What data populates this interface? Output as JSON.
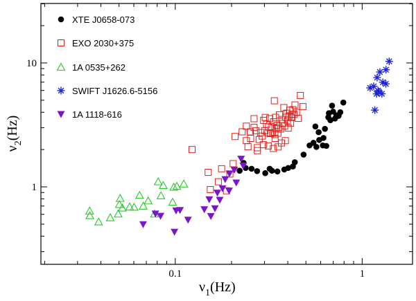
{
  "chart_data": {
    "type": "scatter",
    "title": "",
    "xlabel": "ν1(Hz)",
    "xlabel_main": "ν",
    "xlabel_sub": "1",
    "xlabel_unit": "(Hz)",
    "ylabel": "ν2(Hz)",
    "ylabel_main": "ν",
    "ylabel_sub": "2",
    "ylabel_unit": "(Hz)",
    "xscale": "log",
    "yscale": "log",
    "xlim": [
      0.0191,
      1.86
    ],
    "ylim": [
      0.237,
      30.2
    ],
    "xticks": [
      {
        "value": 0.1,
        "label": "0.1"
      },
      {
        "value": 1,
        "label": "1"
      }
    ],
    "yticks": [
      {
        "value": 1,
        "label": "1"
      },
      {
        "value": 10,
        "label": "10"
      }
    ],
    "legend_position": "top-left",
    "series": [
      {
        "name": "XTE J0658-073",
        "marker": "filled-circle",
        "color": "#000000",
        "points": [
          [
            0.221,
            1.35
          ],
          [
            0.232,
            1.56
          ],
          [
            0.238,
            1.42
          ],
          [
            0.256,
            1.4
          ],
          [
            0.274,
            1.34
          ],
          [
            0.303,
            1.29
          ],
          [
            0.32,
            1.4
          ],
          [
            0.329,
            1.35
          ],
          [
            0.352,
            1.33
          ],
          [
            0.383,
            1.38
          ],
          [
            0.402,
            1.42
          ],
          [
            0.426,
            1.46
          ],
          [
            0.436,
            1.58
          ],
          [
            0.486,
            1.82
          ],
          [
            0.523,
            2.16
          ],
          [
            0.549,
            2.27
          ],
          [
            0.562,
            3.07
          ],
          [
            0.569,
            2.1
          ],
          [
            0.585,
            2.76
          ],
          [
            0.589,
            2.39
          ],
          [
            0.616,
            2.16
          ],
          [
            0.632,
            2.94
          ],
          [
            0.643,
            2.14
          ],
          [
            0.659,
            3.64
          ],
          [
            0.664,
            3.93
          ],
          [
            0.676,
            3.45
          ],
          [
            0.69,
            4.52
          ],
          [
            0.699,
            4.05
          ],
          [
            0.716,
            3.56
          ],
          [
            0.728,
            3.78
          ],
          [
            0.748,
            3.74
          ],
          [
            0.764,
            4.0
          ],
          [
            0.793,
            4.79
          ],
          [
            0.621,
            2.48
          ]
        ]
      },
      {
        "name": "EXO 2030+375",
        "marker": "open-square",
        "color": "#e0201c",
        "points": [
          [
            0.123,
            2.0
          ],
          [
            0.15,
            1.31
          ],
          [
            0.154,
            0.95
          ],
          [
            0.17,
            1.1
          ],
          [
            0.177,
            1.4
          ],
          [
            0.188,
            0.93
          ],
          [
            0.196,
            1.27
          ],
          [
            0.204,
            1.54
          ],
          [
            0.209,
            2.55
          ],
          [
            0.228,
            2.78
          ],
          [
            0.24,
            3.09
          ],
          [
            0.24,
            2.36
          ],
          [
            0.245,
            2.11
          ],
          [
            0.253,
            2.46
          ],
          [
            0.264,
            3.02
          ],
          [
            0.27,
            2.84
          ],
          [
            0.275,
            2.07
          ],
          [
            0.281,
            2.41
          ],
          [
            0.286,
            2.74
          ],
          [
            0.292,
            2.57
          ],
          [
            0.297,
            3.44
          ],
          [
            0.301,
            2.84
          ],
          [
            0.308,
            3.2
          ],
          [
            0.313,
            2.73
          ],
          [
            0.316,
            3.04
          ],
          [
            0.32,
            3.55
          ],
          [
            0.323,
            2.69
          ],
          [
            0.327,
            3.06
          ],
          [
            0.332,
            2.73
          ],
          [
            0.336,
            3.35
          ],
          [
            0.339,
            4.95
          ],
          [
            0.341,
            2.64
          ],
          [
            0.344,
            3.64
          ],
          [
            0.347,
            2.95
          ],
          [
            0.35,
            3.14
          ],
          [
            0.354,
            2.71
          ],
          [
            0.358,
            3.03
          ],
          [
            0.361,
            3.81
          ],
          [
            0.366,
            2.93
          ],
          [
            0.37,
            2.26
          ],
          [
            0.372,
            3.5
          ],
          [
            0.376,
            3.25
          ],
          [
            0.381,
            4.36
          ],
          [
            0.385,
            3.11
          ],
          [
            0.39,
            3.64
          ],
          [
            0.395,
            3.93
          ],
          [
            0.398,
            3.42
          ],
          [
            0.402,
            2.98
          ],
          [
            0.406,
            3.74
          ],
          [
            0.41,
            4.15
          ],
          [
            0.414,
            3.27
          ],
          [
            0.418,
            3.63
          ],
          [
            0.422,
            3.86
          ],
          [
            0.426,
            4.2
          ],
          [
            0.432,
            3.84
          ],
          [
            0.437,
            4.58
          ],
          [
            0.445,
            3.98
          ],
          [
            0.455,
            3.57
          ],
          [
            0.467,
            5.46
          ],
          [
            0.482,
            4.44
          ],
          [
            0.275,
            1.96
          ],
          [
            0.296,
            2.19
          ],
          [
            0.315,
            2.14
          ],
          [
            0.335,
            2.04
          ],
          [
            0.355,
            2.1
          ],
          [
            0.252,
            2.78
          ],
          [
            0.264,
            3.55
          ],
          [
            0.303,
            3.63
          ],
          [
            0.388,
            2.36
          ],
          [
            0.342,
            2.46
          ]
        ]
      },
      {
        "name": "1A 0535+262",
        "marker": "open-triangle",
        "color": "#22cc22",
        "points": [
          [
            0.0348,
            0.639
          ],
          [
            0.0349,
            0.586
          ],
          [
            0.0389,
            0.522
          ],
          [
            0.0449,
            0.564
          ],
          [
            0.0495,
            0.605
          ],
          [
            0.0502,
            0.721
          ],
          [
            0.0507,
            0.808
          ],
          [
            0.0521,
            0.675
          ],
          [
            0.057,
            0.689
          ],
          [
            0.0602,
            0.686
          ],
          [
            0.0644,
            0.855
          ],
          [
            0.0674,
            0.7
          ],
          [
            0.0716,
            0.771
          ],
          [
            0.0774,
            0.605
          ],
          [
            0.081,
            1.1
          ],
          [
            0.0862,
            1.027
          ],
          [
            0.0968,
            0.753
          ],
          [
            0.0982,
            0.994
          ],
          [
            0.102,
            1.011
          ],
          [
            0.111,
            1.055
          ],
          [
            0.0838,
            0.849
          ]
        ]
      },
      {
        "name": "SWIFT J1626.6-5156",
        "marker": "asterisk",
        "color": "#1a24d6",
        "points": [
          [
            1.103,
            6.29
          ],
          [
            1.153,
            6.48
          ],
          [
            1.169,
            4.16
          ],
          [
            1.195,
            5.63
          ],
          [
            1.215,
            5.98
          ],
          [
            1.228,
            5.86
          ],
          [
            1.244,
            8.45
          ],
          [
            1.275,
            5.64
          ],
          [
            1.29,
            6.98
          ],
          [
            1.339,
            6.78
          ],
          [
            1.341,
            8.82
          ],
          [
            1.395,
            10.3
          ],
          [
            1.202,
            7.62
          ]
        ]
      },
      {
        "name": "1A 1118-616",
        "marker": "filled-triangle-down",
        "color": "#7a16c9",
        "points": [
          [
            0.0673,
            0.498
          ],
          [
            0.0783,
            0.607
          ],
          [
            0.0834,
            0.582
          ],
          [
            0.099,
            0.433
          ],
          [
            0.101,
            0.643
          ],
          [
            0.106,
            0.648
          ],
          [
            0.117,
            0.541
          ],
          [
            0.143,
            0.658
          ],
          [
            0.152,
            0.791
          ],
          [
            0.163,
            0.669
          ],
          [
            0.168,
            0.896
          ],
          [
            0.173,
            0.783
          ],
          [
            0.179,
            0.971
          ],
          [
            0.185,
            1.15
          ],
          [
            0.194,
            0.931
          ],
          [
            0.195,
            1.28
          ],
          [
            0.207,
            1.37
          ],
          [
            0.212,
            1.08
          ],
          [
            0.225,
            1.68
          ],
          [
            0.231,
            1.48
          ],
          [
            0.155,
            0.58
          ]
        ]
      }
    ]
  }
}
